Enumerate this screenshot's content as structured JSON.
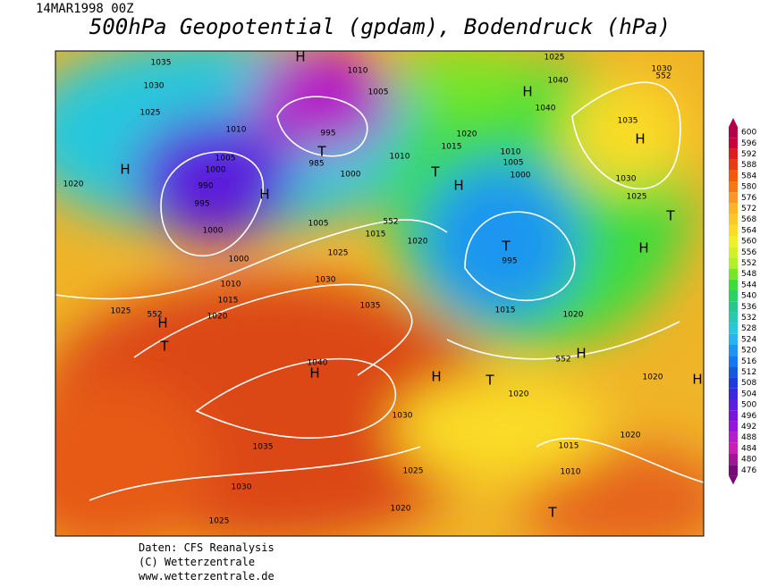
{
  "header": {
    "date": "14MAR1998 00Z",
    "title": "500hPa Geopotential (gpdam), Bodendruck (hPa)"
  },
  "colorbar": {
    "values": [
      600,
      596,
      592,
      588,
      584,
      580,
      576,
      572,
      568,
      564,
      560,
      556,
      552,
      548,
      544,
      540,
      536,
      532,
      528,
      524,
      520,
      516,
      512,
      508,
      504,
      500,
      496,
      492,
      488,
      484,
      480,
      476
    ],
    "colors": [
      "#b4004b",
      "#c8003c",
      "#dc1e1e",
      "#e63c14",
      "#f05a0a",
      "#f57814",
      "#fa9628",
      "#fab428",
      "#fac828",
      "#fadc28",
      "#f0f028",
      "#d2f028",
      "#b4f028",
      "#78e628",
      "#3cdc3c",
      "#28d264",
      "#28c88c",
      "#28c8b4",
      "#28c8dc",
      "#28b4f0",
      "#1e96f0",
      "#1478f0",
      "#145adc",
      "#1e3cdc",
      "#3c28dc",
      "#5a1edc",
      "#7814dc",
      "#9614dc",
      "#b41ec8",
      "#c81eb4",
      "#a01496",
      "#780a78"
    ]
  },
  "map": {
    "pressure_labels": [
      "1035",
      "1030",
      "1025",
      "1010",
      "1005",
      "1000",
      "990",
      "995",
      "1000",
      "1000",
      "1010",
      "1015",
      "1020",
      "1025",
      "552",
      "985",
      "995",
      "995",
      "1025",
      "1030",
      "1035",
      "1020",
      "1015",
      "1005",
      "552",
      "1010",
      "1015",
      "1020",
      "1010",
      "1005",
      "1000",
      "1000",
      "1010",
      "1005",
      "1025",
      "1040",
      "1040",
      "1030",
      "552",
      "1035",
      "1030",
      "1025",
      "1020",
      "1040",
      "1020",
      "1020",
      "1030",
      "1035",
      "1030",
      "1025",
      "1025",
      "1020",
      "1015",
      "1010",
      "1020",
      "1015",
      "1020",
      "552"
    ],
    "centers": [
      "H",
      "H",
      "H",
      "T",
      "T",
      "H",
      "T",
      "H",
      "H",
      "H",
      "T",
      "H",
      "T",
      "H",
      "H",
      "T",
      "H",
      "H",
      "T"
    ]
  },
  "footer": {
    "lines": [
      "Daten: CFS Reanalysis",
      "(C) Wetterzentrale",
      "www.wetterzentrale.de"
    ]
  }
}
